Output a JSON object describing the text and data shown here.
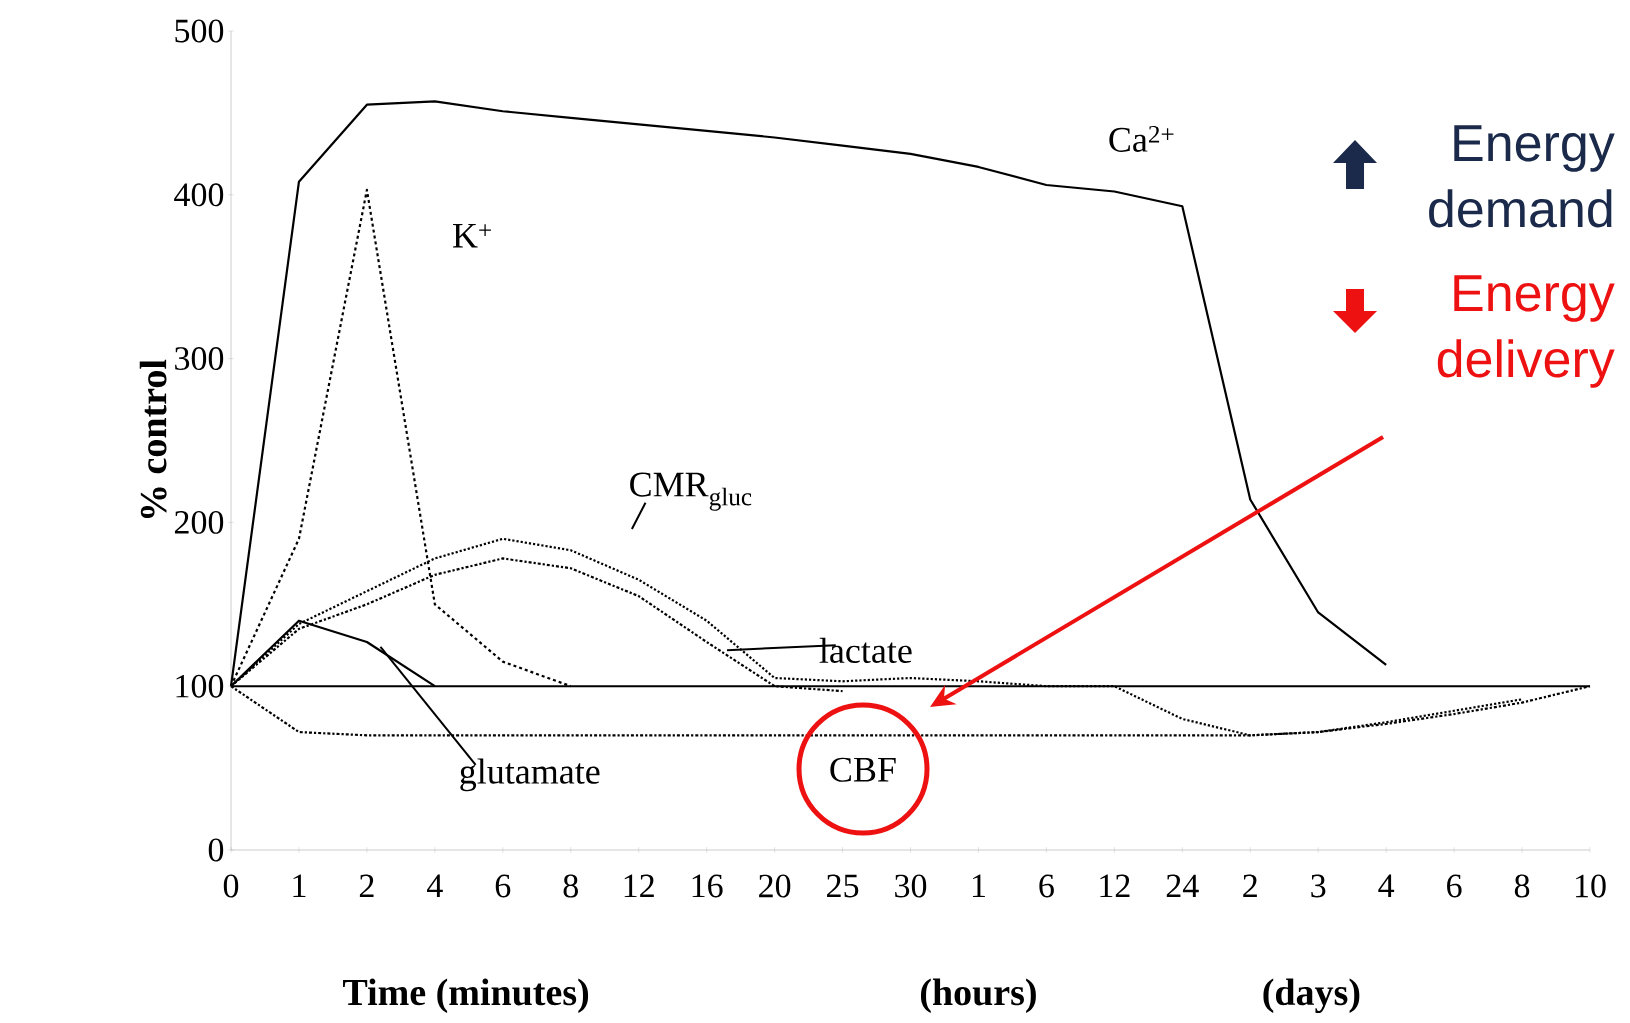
{
  "chart_data": {
    "type": "line",
    "xlabel": "Time (minutes)",
    "ylabel": "% control",
    "categories": [
      "0",
      "1",
      "2",
      "4",
      "6",
      "8",
      "12",
      "16",
      "20",
      "25",
      "30",
      "1",
      "6",
      "12",
      "24",
      "2",
      "3",
      "4",
      "6",
      "8",
      "10"
    ],
    "ylim": [
      0,
      500
    ],
    "yticks": [
      0,
      100,
      200,
      300,
      400,
      500
    ],
    "ref_lines": [
      {
        "axis": "y",
        "value": 100,
        "color": "#000000",
        "line_style": "solid"
      }
    ],
    "series": [
      {
        "name": "Ca$^{2+}$",
        "color": "#000000",
        "line_style": "solid",
        "values": [
          100,
          408,
          455,
          457,
          451,
          447,
          443,
          439,
          435,
          430,
          425,
          417,
          406,
          402,
          393,
          214,
          145,
          113,
          null,
          null,
          null
        ]
      },
      {
        "name": "K$^{+}$",
        "color": "#000000",
        "line_style": "dashed",
        "values": [
          100,
          190,
          403,
          150,
          115,
          100,
          null,
          null,
          null,
          null,
          null,
          null,
          null,
          null,
          null,
          null,
          null,
          null,
          null,
          null,
          null
        ]
      },
      {
        "name": "CMR$_{gluc}$",
        "color": "#000000",
        "line_style": "dotted",
        "values": [
          100,
          138,
          158,
          178,
          190,
          183,
          165,
          140,
          105,
          103,
          105,
          103,
          100,
          100,
          80,
          70,
          72,
          78,
          85,
          92,
          null
        ]
      },
      {
        "name": "lactate",
        "color": "#000000",
        "line_style": "dashdot",
        "values": [
          100,
          135,
          150,
          168,
          178,
          172,
          155,
          127,
          100,
          97,
          null,
          null,
          null,
          null,
          null,
          null,
          null,
          null,
          null,
          null,
          null
        ]
      },
      {
        "name": "glutamate",
        "color": "#000000",
        "line_style": "solid",
        "values": [
          100,
          140,
          127,
          100,
          null,
          null,
          null,
          null,
          null,
          null,
          null,
          null,
          null,
          null,
          null,
          null,
          null,
          null,
          null,
          null,
          null
        ]
      },
      {
        "name": "CBF",
        "color": "#000000",
        "line_style": "dashdot",
        "values": [
          100,
          72,
          70,
          70,
          70,
          70,
          70,
          70,
          70,
          70,
          70,
          70,
          70,
          70,
          70,
          70,
          72,
          77,
          83,
          90,
          100
        ]
      }
    ],
    "annotations": [
      "(hours)",
      "(days)",
      "Energy demand",
      "Energy delivery"
    ]
  }
}
